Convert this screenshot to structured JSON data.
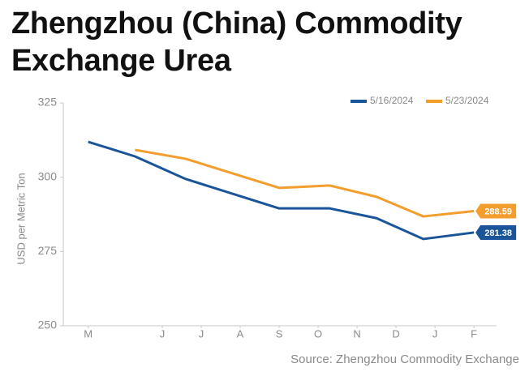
{
  "chart_data": {
    "type": "line",
    "title": "Zhengzhou (China) Commodity Exchange Urea",
    "y_label": "USD per Metric Ton",
    "source": "Source: Zhengzhou Commodity Exchange",
    "xlim": [
      -2.54,
      8.58
    ],
    "xticks": [
      {
        "value": -1.9,
        "label": "M"
      },
      {
        "value": 0,
        "label": "J"
      },
      {
        "value": 1,
        "label": "J"
      },
      {
        "value": 2,
        "label": "A"
      },
      {
        "value": 3,
        "label": "S"
      },
      {
        "value": 4,
        "label": "O"
      },
      {
        "value": 5,
        "label": "N"
      },
      {
        "value": 6,
        "label": "D"
      },
      {
        "value": 7,
        "label": "J"
      },
      {
        "value": 8,
        "label": "F"
      }
    ],
    "ylim": [
      250,
      325
    ],
    "yticks": [
      250,
      275,
      300,
      325
    ],
    "legend": "top-right",
    "series": [
      {
        "name": "5/16/2024",
        "color": "#1a5599",
        "x": [
          -1.9,
          -0.7,
          0.6,
          3.0,
          4.3,
          5.5,
          6.7,
          8.0
        ],
        "values": [
          311.9,
          307.0,
          299.4,
          289.5,
          289.5,
          286.2,
          279.2,
          281.38
        ]
      },
      {
        "name": "5/23/2024",
        "color": "#f29d2c",
        "x": [
          -0.7,
          0.6,
          3.0,
          4.3,
          5.5,
          6.7,
          8.0
        ],
        "values": [
          309.2,
          306.2,
          296.4,
          297.2,
          293.4,
          286.8,
          288.59
        ]
      }
    ]
  }
}
